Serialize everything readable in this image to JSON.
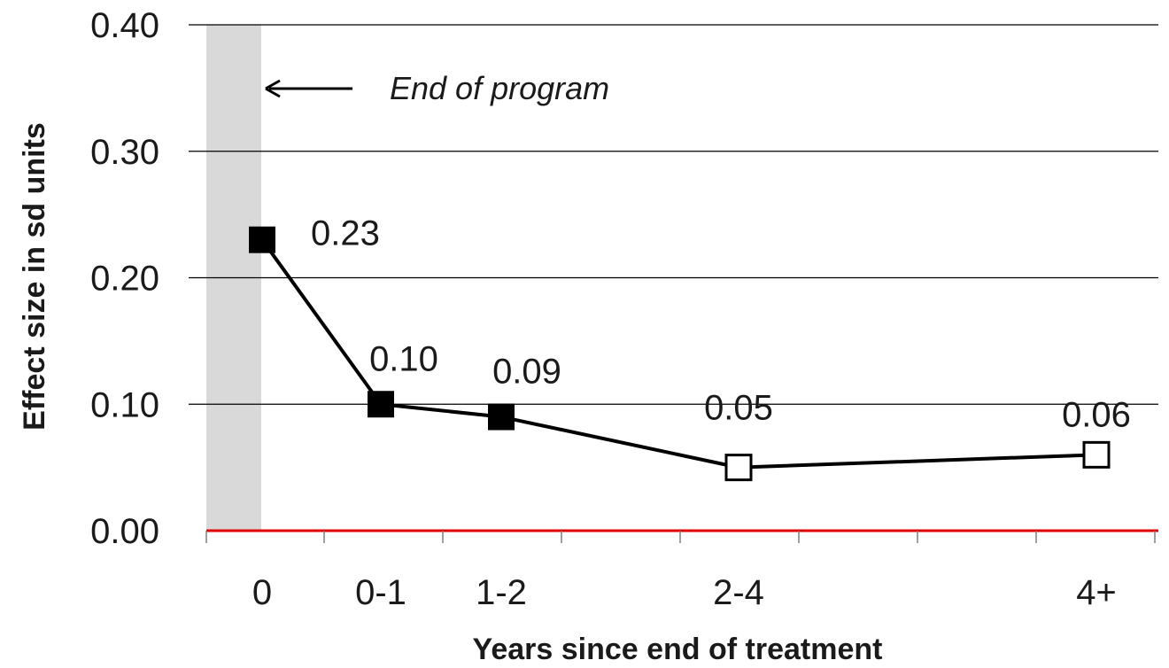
{
  "chart_data": {
    "type": "line",
    "title": "",
    "xlabel": "Years since end of treatment",
    "ylabel": "Effect size in sd units",
    "categories": [
      "0",
      "0-1",
      "1-2",
      "2-4",
      "4+"
    ],
    "values": [
      0.23,
      0.1,
      0.09,
      0.05,
      0.06
    ],
    "data_labels": [
      "0.23",
      "0.10",
      "0.09",
      "0.05",
      "0.06"
    ],
    "marker_fill": [
      "filled",
      "filled",
      "filled",
      "hollow",
      "hollow"
    ],
    "ylim": [
      0,
      0.4
    ],
    "yticks": [
      "0.00",
      "0.10",
      "0.20",
      "0.30",
      "0.40"
    ],
    "ytick_values": [
      0,
      0.1,
      0.2,
      0.3,
      0.4
    ],
    "grid": true,
    "legend": "none",
    "annotation": {
      "text": "End of program",
      "shaded_band": "0"
    },
    "colors": {
      "line": "#000000",
      "baseline": "#e00000",
      "band": "#d9d9d9",
      "grid": "#000000"
    }
  }
}
